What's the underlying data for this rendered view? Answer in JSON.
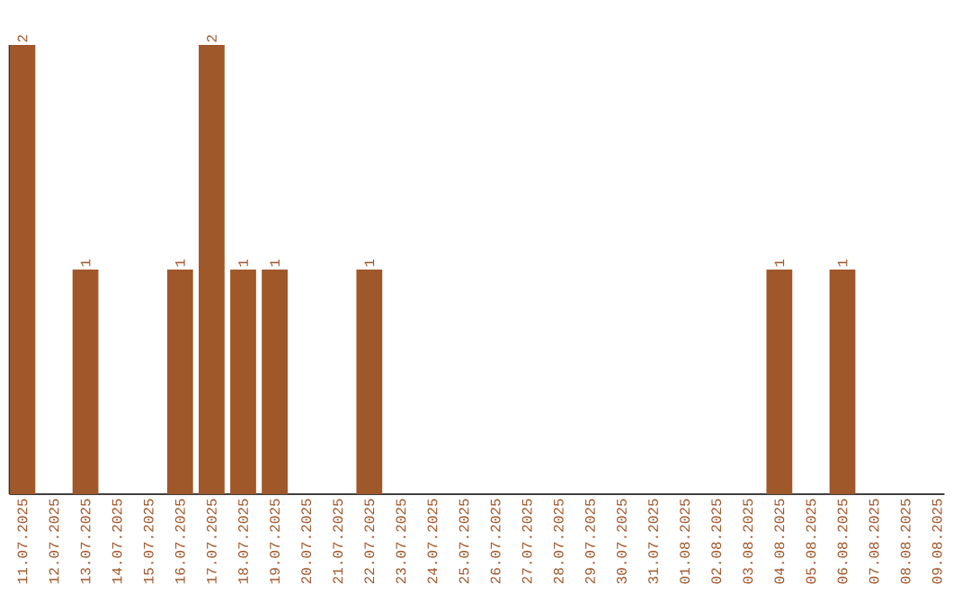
{
  "chart_data": {
    "type": "bar",
    "color": "#a0572a",
    "categories": [
      "11.07.2025",
      "12.07.2025",
      "13.07.2025",
      "14.07.2025",
      "15.07.2025",
      "16.07.2025",
      "17.07.2025",
      "18.07.2025",
      "19.07.2025",
      "20.07.2025",
      "21.07.2025",
      "22.07.2025",
      "23.07.2025",
      "24.07.2025",
      "25.07.2025",
      "26.07.2025",
      "27.07.2025",
      "28.07.2025",
      "29.07.2025",
      "30.07.2025",
      "31.07.2025",
      "01.08.2025",
      "02.08.2025",
      "03.08.2025",
      "04.08.2025",
      "05.08.2025",
      "06.08.2025",
      "07.08.2025",
      "08.08.2025",
      "09.08.2025"
    ],
    "values": [
      2,
      0,
      1,
      0,
      0,
      1,
      2,
      1,
      1,
      0,
      0,
      1,
      0,
      0,
      0,
      0,
      0,
      0,
      0,
      0,
      0,
      0,
      0,
      0,
      1,
      0,
      1,
      0,
      0,
      0
    ],
    "value_labels": [
      "2",
      null,
      "1",
      null,
      null,
      "1",
      "2",
      "1",
      "1",
      null,
      null,
      "1",
      null,
      null,
      null,
      null,
      null,
      null,
      null,
      null,
      null,
      null,
      null,
      null,
      "1",
      null,
      "1",
      null,
      null,
      null
    ],
    "grid": false,
    "legend": false
  }
}
